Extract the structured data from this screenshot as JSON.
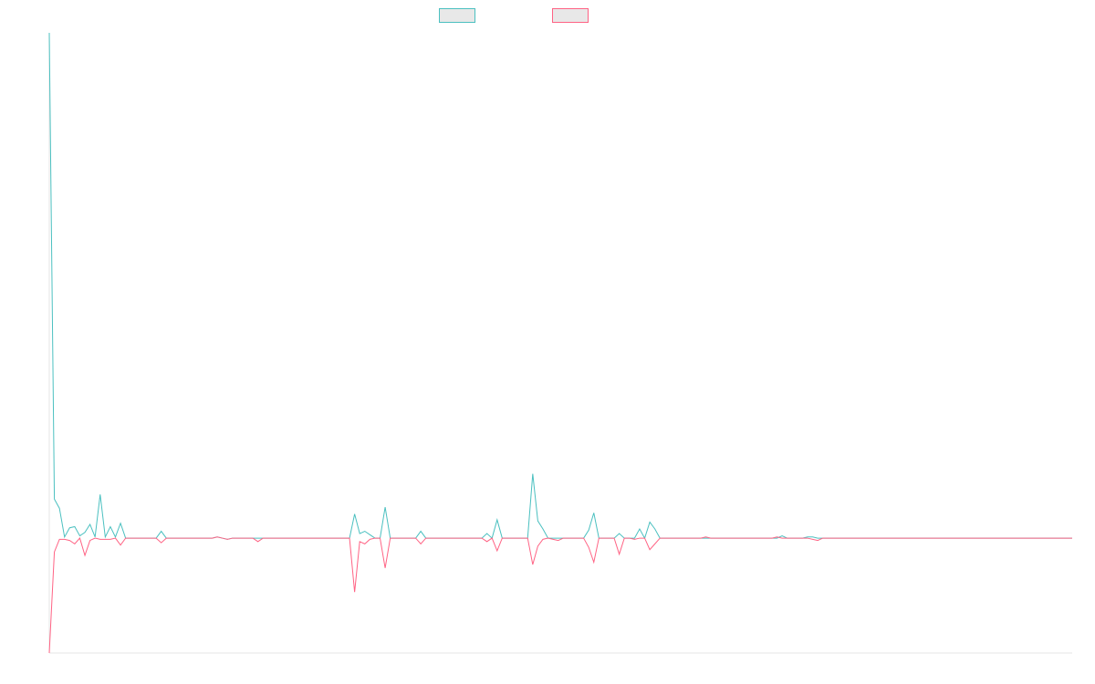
{
  "chart_data": {
    "type": "line",
    "title": "",
    "xlabel": "",
    "ylabel": "",
    "grid": false,
    "legend_placement": "top-center",
    "ylim": [
      -1,
      4.4
    ],
    "series": [
      {
        "name": "",
        "color": "#4bc0c0",
        "values": [
          4.4,
          0.34,
          0.26,
          0.01,
          0.09,
          0.1,
          0.02,
          0.05,
          0.12,
          0.01,
          0.38,
          0.01,
          0.1,
          0.01,
          0.13,
          0,
          0,
          0,
          0,
          0,
          0,
          0,
          0.06,
          0,
          0,
          0,
          0,
          0,
          0,
          0,
          0,
          0,
          0,
          0.01,
          0,
          -0.01,
          0,
          0,
          0,
          0,
          0,
          0,
          0,
          0,
          0,
          0,
          0,
          0,
          0,
          0,
          0,
          0,
          0,
          0,
          0,
          0,
          0,
          0,
          0,
          0,
          0.21,
          0.04,
          0.06,
          0.03,
          0,
          0,
          0.27,
          0,
          0,
          0,
          0,
          0,
          0,
          0.06,
          0,
          0,
          0,
          0,
          0,
          0,
          0,
          0,
          0,
          0,
          0,
          0,
          0.04,
          0,
          0.16,
          0,
          0,
          0,
          0,
          0,
          0,
          0.56,
          0.15,
          0.08,
          0,
          0,
          0,
          0,
          0,
          0,
          0,
          0,
          0.07,
          0.22,
          0,
          0,
          0,
          0,
          0.04,
          0,
          0,
          0,
          0.08,
          0,
          0.14,
          0.08,
          0,
          0,
          0,
          0,
          0,
          0,
          0,
          0,
          0,
          0,
          0,
          0,
          0,
          0,
          0,
          0,
          0,
          0,
          0,
          0,
          0,
          0,
          0,
          0,
          0.02,
          0,
          0,
          0,
          0,
          0.01,
          0.01,
          0,
          0,
          0,
          0,
          0,
          0,
          0,
          0,
          0,
          0,
          0,
          0,
          0,
          0,
          0,
          0,
          0,
          0,
          0,
          0,
          0,
          0,
          0,
          0,
          0,
          0,
          0,
          0,
          0,
          0,
          0,
          0,
          0,
          0,
          0,
          0,
          0,
          0,
          0,
          0,
          0,
          0,
          0,
          0,
          0,
          0,
          0,
          0,
          0,
          0,
          0
        ]
      },
      {
        "name": "",
        "color": "#ff6384",
        "values": [
          -1,
          -0.12,
          -0.01,
          -0.01,
          -0.02,
          -0.05,
          0,
          -0.15,
          -0.02,
          0,
          -0.01,
          -0.01,
          -0.01,
          0,
          -0.06,
          0,
          0,
          0,
          0,
          0,
          0,
          0,
          -0.04,
          0,
          0,
          0,
          0,
          0,
          0,
          0,
          0,
          0,
          0,
          0.01,
          0,
          -0.01,
          0,
          0,
          0,
          0,
          0,
          -0.03,
          0,
          0,
          0,
          0,
          0,
          0,
          0,
          0,
          0,
          0,
          0,
          0,
          0,
          0,
          0,
          0,
          0,
          0,
          -0.47,
          -0.03,
          -0.05,
          -0.01,
          0,
          0,
          -0.26,
          0,
          0,
          0,
          0,
          0,
          0,
          -0.05,
          0,
          0,
          0,
          0,
          0,
          0,
          0,
          0,
          0,
          0,
          0,
          0,
          -0.03,
          0,
          -0.11,
          0,
          0,
          0,
          0,
          0,
          0,
          -0.23,
          -0.07,
          -0.01,
          0,
          -0.01,
          -0.02,
          0,
          0,
          0,
          0,
          0,
          -0.08,
          -0.21,
          0,
          0,
          0,
          0,
          -0.14,
          0,
          0,
          -0.01,
          0,
          0,
          -0.1,
          -0.05,
          0,
          0,
          0,
          0,
          0,
          0,
          0,
          0,
          0,
          0.01,
          0,
          0,
          0,
          0,
          0,
          0,
          0,
          0,
          0,
          0,
          0,
          0,
          0,
          0.01,
          0,
          0,
          0,
          0,
          0,
          0,
          -0.01,
          -0.02,
          0,
          0,
          0,
          0,
          0,
          0,
          0,
          0,
          0,
          0,
          0,
          0,
          0,
          0,
          0,
          0,
          0,
          0,
          0,
          0,
          0,
          0,
          0,
          0,
          0,
          0,
          0,
          0,
          0,
          0,
          0,
          0,
          0,
          0,
          0,
          0,
          0,
          0,
          0,
          0,
          0,
          0,
          0,
          0,
          0,
          0,
          0,
          0,
          0,
          0
        ]
      }
    ]
  }
}
